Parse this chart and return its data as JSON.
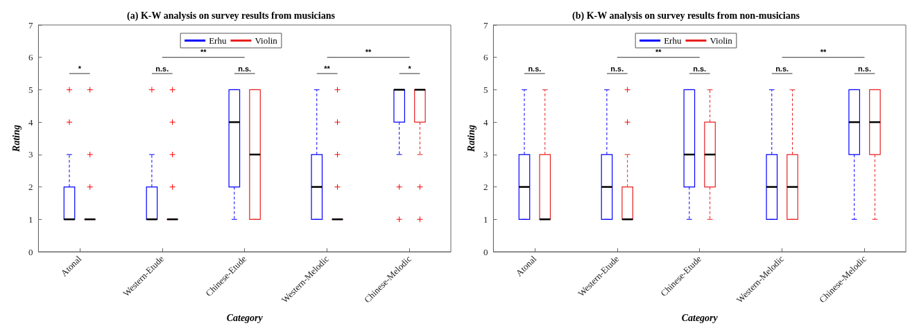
{
  "chart_data": [
    {
      "type": "box",
      "title": "(a) K-W analysis on survey results from musicians",
      "xlabel": "Category",
      "ylabel": "Rating",
      "categories": [
        "Atonal",
        "Western-Etude",
        "Chinese-Etude",
        "Western-Melodic",
        "Chinese-Melodic"
      ],
      "ylim": [
        0,
        7
      ],
      "yticks": [
        0,
        1,
        2,
        3,
        4,
        5,
        6,
        7
      ],
      "grid": false,
      "legend": "top",
      "series": [
        {
          "name": "Erhu",
          "color": "#0000ff",
          "boxes": [
            {
              "low": 1,
              "q1": 1,
              "median": 1,
              "q3": 2,
              "high": 3,
              "outliers": [
                4,
                5
              ]
            },
            {
              "low": 1,
              "q1": 1,
              "median": 1,
              "q3": 2,
              "high": 3,
              "outliers": [
                5
              ]
            },
            {
              "low": 1,
              "q1": 2,
              "median": 4,
              "q3": 5,
              "high": 5
            },
            {
              "low": 1,
              "q1": 1,
              "median": 2,
              "q3": 3,
              "high": 5
            },
            {
              "low": 3,
              "q1": 4,
              "median": 5,
              "q3": 5,
              "high": 5,
              "outliers": [
                1,
                2
              ]
            }
          ]
        },
        {
          "name": "Violin",
          "color": "#e8201f",
          "boxes": [
            {
              "low": 1,
              "q1": 1,
              "median": 1,
              "q3": 1,
              "high": 1,
              "outliers": [
                2,
                3,
                5
              ]
            },
            {
              "low": 1,
              "q1": 1,
              "median": 1,
              "q3": 1,
              "high": 1,
              "outliers": [
                2,
                3,
                4,
                5
              ]
            },
            {
              "low": 1,
              "q1": 1,
              "median": 3,
              "q3": 5,
              "high": 5
            },
            {
              "low": 1,
              "q1": 1,
              "median": 1,
              "q3": 1,
              "high": 1,
              "outliers": [
                2,
                3,
                4,
                5
              ]
            },
            {
              "low": 3,
              "q1": 4,
              "median": 5,
              "q3": 5,
              "high": 5,
              "outliers": [
                1,
                2
              ]
            }
          ]
        }
      ],
      "annotations": [
        "*",
        "n.s.",
        "n.s.",
        "**",
        "*",
        "**",
        "**"
      ]
    },
    {
      "type": "box",
      "title": "(b) K-W analysis on survey results from non-musicians",
      "xlabel": "Category",
      "ylabel": "Rating",
      "categories": [
        "Atonal",
        "Western-Etude",
        "Chinese-Etude",
        "Western-Melodic",
        "Chinese-Melodic"
      ],
      "ylim": [
        0,
        7
      ],
      "yticks": [
        0,
        1,
        2,
        3,
        4,
        5,
        6,
        7
      ],
      "grid": false,
      "legend": "top",
      "series": [
        {
          "name": "Erhu",
          "color": "#0000ff",
          "boxes": [
            {
              "low": 1,
              "q1": 1,
              "median": 2,
              "q3": 3,
              "high": 5
            },
            {
              "low": 1,
              "q1": 1,
              "median": 2,
              "q3": 3,
              "high": 5
            },
            {
              "low": 1,
              "q1": 2,
              "median": 3,
              "q3": 5,
              "high": 5
            },
            {
              "low": 1,
              "q1": 1,
              "median": 2,
              "q3": 3,
              "high": 5
            },
            {
              "low": 1,
              "q1": 3,
              "median": 4,
              "q3": 5,
              "high": 5
            }
          ]
        },
        {
          "name": "Violin",
          "color": "#e8201f",
          "boxes": [
            {
              "low": 1,
              "q1": 1,
              "median": 1,
              "q3": 3,
              "high": 5
            },
            {
              "low": 1,
              "q1": 1,
              "median": 1,
              "q3": 2,
              "high": 3,
              "outliers": [
                4,
                5
              ]
            },
            {
              "low": 1,
              "q1": 2,
              "median": 3,
              "q3": 4,
              "high": 5
            },
            {
              "low": 1,
              "q1": 1,
              "median": 2,
              "q3": 3,
              "high": 5
            },
            {
              "low": 1,
              "q1": 3,
              "median": 4,
              "q3": 5,
              "high": 5
            }
          ]
        }
      ],
      "annotations": [
        "n.s.",
        "n.s.",
        "n.s.",
        "n.s.",
        "n.s.",
        "**",
        "**"
      ]
    }
  ]
}
